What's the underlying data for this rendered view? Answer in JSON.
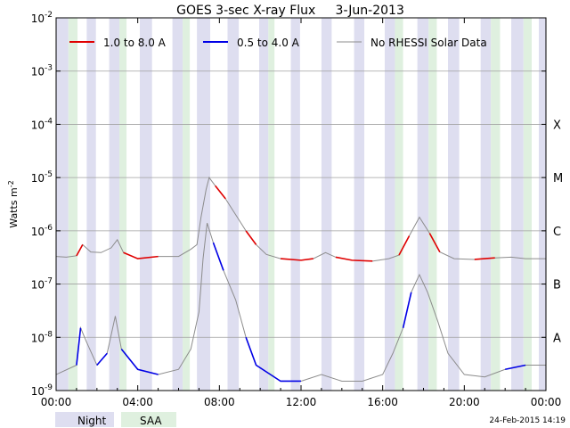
{
  "chart_data": {
    "type": "line",
    "title": "GOES 3-sec X-ray Flux     3-Jun-2013",
    "ylabel_base": "Watts m",
    "ylabel_exp": "-2",
    "y_scale": "log",
    "ylim": [
      1e-09,
      0.01
    ],
    "y_ticks": [
      {
        "base": "10",
        "exp": "-9",
        "value": 1e-09
      },
      {
        "base": "10",
        "exp": "-8",
        "value": 1e-08
      },
      {
        "base": "10",
        "exp": "-7",
        "value": 1e-07
      },
      {
        "base": "10",
        "exp": "-6",
        "value": 1e-06
      },
      {
        "base": "10",
        "exp": "-5",
        "value": 1e-05
      },
      {
        "base": "10",
        "exp": "-4",
        "value": 0.0001
      },
      {
        "base": "10",
        "exp": "-3",
        "value": 0.001
      },
      {
        "base": "10",
        "exp": "-2",
        "value": 0.01
      }
    ],
    "flare_classes": [
      {
        "label": "A",
        "value": 1e-08
      },
      {
        "label": "B",
        "value": 1e-07
      },
      {
        "label": "C",
        "value": 1e-06
      },
      {
        "label": "M",
        "value": 1e-05
      },
      {
        "label": "X",
        "value": 0.0001
      }
    ],
    "xlim_hours": [
      0,
      24
    ],
    "x_ticks": [
      {
        "label": "00:00",
        "hour": 0
      },
      {
        "label": "04:00",
        "hour": 4
      },
      {
        "label": "08:00",
        "hour": 8
      },
      {
        "label": "12:00",
        "hour": 12
      },
      {
        "label": "16:00",
        "hour": 16
      },
      {
        "label": "20:00",
        "hour": 20
      },
      {
        "label": "00:00",
        "hour": 24
      }
    ],
    "grid": "horizontal at each decade",
    "legend_placement": "top",
    "series": [
      {
        "name": "1.0 to 8.0 A",
        "color": "#e00000",
        "points": [
          [
            0,
            3.3e-07
          ],
          [
            0.5,
            3.2e-07
          ],
          [
            1.0,
            3.4e-07
          ],
          [
            1.3,
            5.5e-07
          ],
          [
            1.7,
            4e-07
          ],
          [
            2.2,
            3.9e-07
          ],
          [
            2.7,
            4.8e-07
          ],
          [
            3.0,
            6.8e-07
          ],
          [
            3.3,
            3.9e-07
          ],
          [
            4.0,
            3e-07
          ],
          [
            5.0,
            3.3e-07
          ],
          [
            6.0,
            3.3e-07
          ],
          [
            6.6,
            4.5e-07
          ],
          [
            6.9,
            5.5e-07
          ],
          [
            7.1,
            1.8e-06
          ],
          [
            7.35,
            6e-06
          ],
          [
            7.5,
            1e-05
          ],
          [
            7.8,
            7e-06
          ],
          [
            8.3,
            4e-06
          ],
          [
            8.8,
            2e-06
          ],
          [
            9.3,
            1e-06
          ],
          [
            9.8,
            5.5e-07
          ],
          [
            10.3,
            3.6e-07
          ],
          [
            11,
            3e-07
          ],
          [
            12,
            2.8e-07
          ],
          [
            12.6,
            3e-07
          ],
          [
            13.2,
            3.9e-07
          ],
          [
            13.7,
            3.2e-07
          ],
          [
            14.5,
            2.8e-07
          ],
          [
            15.5,
            2.7e-07
          ],
          [
            16.3,
            3e-07
          ],
          [
            16.8,
            3.5e-07
          ],
          [
            17.3,
            8e-07
          ],
          [
            17.8,
            1.8e-06
          ],
          [
            18.3,
            9e-07
          ],
          [
            18.8,
            4e-07
          ],
          [
            19.5,
            3e-07
          ],
          [
            20.5,
            2.9e-07
          ],
          [
            21.5,
            3.1e-07
          ],
          [
            22.3,
            3.2e-07
          ],
          [
            23.0,
            3e-07
          ],
          [
            24,
            3e-07
          ]
        ]
      },
      {
        "name": "0.5 to 4.0 A",
        "color": "#0000e6",
        "points": [
          [
            0,
            2e-09
          ],
          [
            1.0,
            3e-09
          ],
          [
            1.2,
            1.5e-08
          ],
          [
            1.5,
            8e-09
          ],
          [
            2.0,
            3e-09
          ],
          [
            2.5,
            5e-09
          ],
          [
            2.9,
            2.5e-08
          ],
          [
            3.2,
            6e-09
          ],
          [
            4.0,
            2.5e-09
          ],
          [
            5.0,
            2e-09
          ],
          [
            6.0,
            2.5e-09
          ],
          [
            6.6,
            6e-09
          ],
          [
            7.0,
            3e-08
          ],
          [
            7.2,
            3e-07
          ],
          [
            7.4,
            1.4e-06
          ],
          [
            7.7,
            6e-07
          ],
          [
            8.2,
            1.8e-07
          ],
          [
            8.8,
            5e-08
          ],
          [
            9.3,
            1e-08
          ],
          [
            9.8,
            3e-09
          ],
          [
            11,
            1.5e-09
          ],
          [
            12,
            1.5e-09
          ],
          [
            13,
            2e-09
          ],
          [
            14,
            1.5e-09
          ],
          [
            15,
            1.5e-09
          ],
          [
            16,
            2e-09
          ],
          [
            16.5,
            5e-09
          ],
          [
            17.0,
            1.5e-08
          ],
          [
            17.4,
            7e-08
          ],
          [
            17.8,
            1.5e-07
          ],
          [
            18.2,
            7e-08
          ],
          [
            18.7,
            2e-08
          ],
          [
            19.2,
            5e-09
          ],
          [
            20,
            2e-09
          ],
          [
            21,
            1.8e-09
          ],
          [
            22,
            2.5e-09
          ],
          [
            23,
            3e-09
          ],
          [
            24,
            3e-09
          ]
        ]
      },
      {
        "name": "No RHESSI Solar Data",
        "color": "#8c8c8c"
      }
    ],
    "shading": {
      "night_color": "#dedef0",
      "saa_color": "#dff0df",
      "night_bands": [
        [
          0.0,
          0.6
        ],
        [
          1.5,
          1.95
        ],
        [
          2.6,
          3.1
        ],
        [
          4.1,
          4.7
        ],
        [
          5.7,
          6.2
        ],
        [
          6.9,
          7.55
        ],
        [
          8.4,
          8.95
        ],
        [
          9.95,
          10.4
        ],
        [
          11.5,
          11.95
        ],
        [
          13.0,
          13.5
        ],
        [
          14.6,
          15.1
        ],
        [
          16.1,
          16.6
        ],
        [
          17.7,
          18.25
        ],
        [
          19.2,
          19.75
        ],
        [
          20.8,
          21.3
        ],
        [
          22.3,
          22.9
        ],
        [
          23.65,
          24.0
        ]
      ],
      "saa_bands": [
        [
          0.6,
          1.05
        ],
        [
          3.1,
          3.45
        ],
        [
          6.2,
          6.55
        ],
        [
          10.4,
          10.7
        ],
        [
          16.6,
          17.0
        ],
        [
          18.25,
          18.65
        ],
        [
          21.3,
          21.75
        ],
        [
          22.9,
          23.3
        ]
      ]
    }
  },
  "legend_bottom": {
    "night_label": "Night",
    "saa_label": "SAA"
  },
  "footer": {
    "timestamp": "24-Feb-2015 14:19"
  }
}
